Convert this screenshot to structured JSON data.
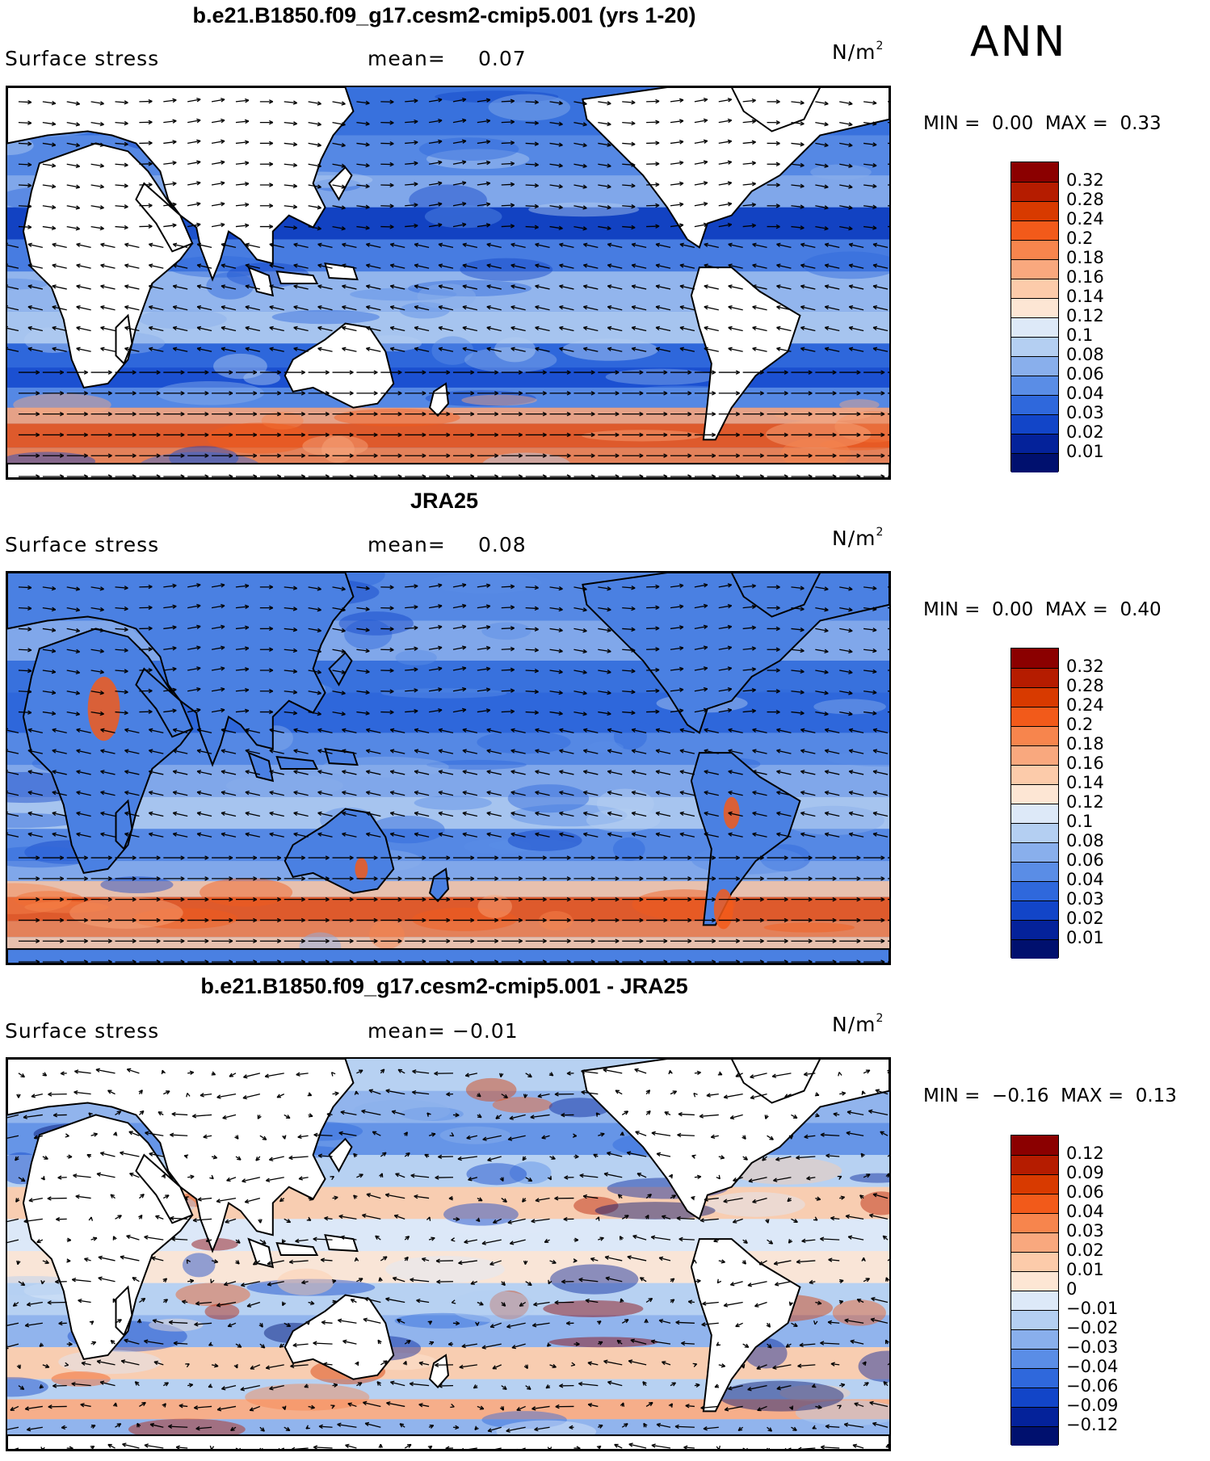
{
  "season": "ANN",
  "panels": [
    {
      "title": "b.e21.B1850.f09_g17.cesm2-cmip5.001 (yrs 1-20)",
      "variable": "Surface stress",
      "mean_label": "mean=",
      "mean_value": "0.07",
      "units": "N/m",
      "units_sup": "2",
      "min_label": "MIN =",
      "min_value": "0.00",
      "max_label": "MAX =",
      "max_value": "0.33",
      "colorbar": {
        "labels": [
          "0.32",
          "0.28",
          "0.24",
          "0.2",
          "0.18",
          "0.16",
          "0.14",
          "0.12",
          "0.1",
          "0.08",
          "0.06",
          "0.04",
          "0.03",
          "0.02",
          "0.01"
        ],
        "colors": [
          "#8b0000",
          "#b51c00",
          "#d83a00",
          "#f25a1a",
          "#f7854d",
          "#f9a87e",
          "#fccbaa",
          "#fde6d4",
          "#dde9f8",
          "#b4cff2",
          "#89afec",
          "#5a8de6",
          "#2f68dc",
          "#1245c8",
          "#04229a",
          "#00106e"
        ]
      },
      "map_style": "model"
    },
    {
      "title": "JRA25",
      "variable": "Surface stress",
      "mean_label": "mean=",
      "mean_value": "0.08",
      "units": "N/m",
      "units_sup": "2",
      "min_label": "MIN =",
      "min_value": "0.00",
      "max_label": "MAX =",
      "max_value": "0.40",
      "colorbar": {
        "labels": [
          "0.32",
          "0.28",
          "0.24",
          "0.2",
          "0.18",
          "0.16",
          "0.14",
          "0.12",
          "0.1",
          "0.08",
          "0.06",
          "0.04",
          "0.03",
          "0.02",
          "0.01"
        ],
        "colors": [
          "#8b0000",
          "#b51c00",
          "#d83a00",
          "#f25a1a",
          "#f7854d",
          "#f9a87e",
          "#fccbaa",
          "#fde6d4",
          "#dde9f8",
          "#b4cff2",
          "#89afec",
          "#5a8de6",
          "#2f68dc",
          "#1245c8",
          "#04229a",
          "#00106e"
        ]
      },
      "map_style": "obs"
    },
    {
      "title": "b.e21.B1850.f09_g17.cesm2-cmip5.001 - JRA25",
      "variable": "Surface stress",
      "mean_label": "mean=",
      "mean_value": "−0.01",
      "units": "N/m",
      "units_sup": "2",
      "min_label": "MIN =",
      "min_value": "−0.16",
      "max_label": "MAX =",
      "max_value": "0.13",
      "colorbar": {
        "labels": [
          "0.12",
          "0.09",
          "0.06",
          "0.04",
          "0.03",
          "0.02",
          "0.01",
          "0",
          "−0.01",
          "−0.02",
          "−0.03",
          "−0.04",
          "−0.06",
          "−0.09",
          "−0.12"
        ],
        "colors": [
          "#8b0000",
          "#b51c00",
          "#d83a00",
          "#f25a1a",
          "#f7854d",
          "#f9a87e",
          "#fccbaa",
          "#fde6d4",
          "#dde9f8",
          "#b4cff2",
          "#89afec",
          "#5a8de6",
          "#2f68dc",
          "#1245c8",
          "#04229a",
          "#00106e"
        ]
      },
      "map_style": "diff"
    }
  ]
}
